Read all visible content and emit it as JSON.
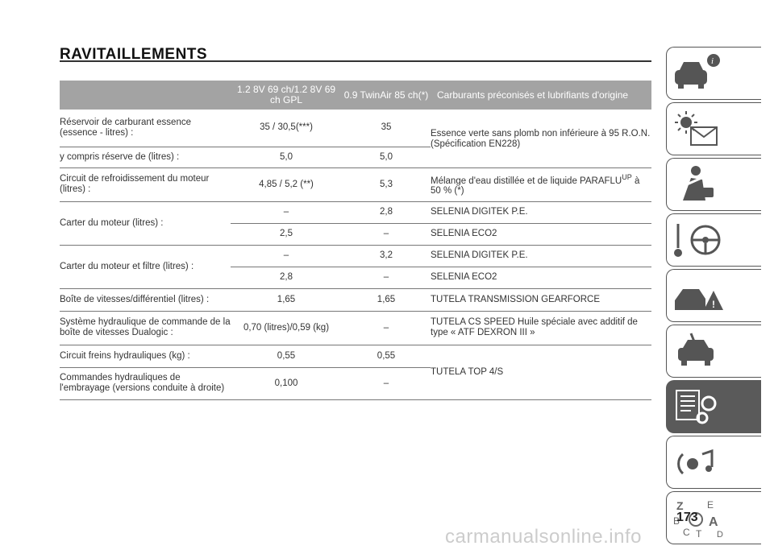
{
  "title": "RAVITAILLEMENTS",
  "headers": [
    "",
    "1.2 8V 69 ch/1.2 8V 69 ch GPL",
    "0.9 TwinAir 85 ch(*)",
    "Carburants préconisés et lubrifiants d'origine"
  ],
  "rows": [
    {
      "desc": "Réservoir de carburant essence (essence - litres) :",
      "v1": "35 / 30,5(***)",
      "v2": "35"
    },
    {
      "desc": "y compris réserve de (litres) :",
      "v1": "5,0",
      "v2": "5,0"
    },
    {
      "desc": "Circuit de refroidissement du moteur (litres) :",
      "v1": "4,85 / 5,2 (**)",
      "v2": "5,3",
      "fuel_pre": "Mélange d'eau distillée et de liquide PARAFLU",
      "fuel_sup": "UP",
      "fuel_post": " à 50 % (*)"
    },
    {
      "desc": "Carter du moteur (litres) :",
      "v1": "–",
      "v2": "2,8",
      "fuel": "SELENIA DIGITEK P.E."
    },
    {
      "v1": "2,5",
      "v2": "–",
      "fuel": "SELENIA ECO2"
    },
    {
      "desc": "Carter du moteur et filtre (litres) :",
      "v1": "–",
      "v2": "3,2",
      "fuel": "SELENIA DIGITEK P.E."
    },
    {
      "v1": "2,8",
      "v2": "–",
      "fuel": "SELENIA ECO2"
    },
    {
      "desc": "Boîte de vitesses/différentiel (litres) :",
      "v1": "1,65",
      "v2": "1,65",
      "fuel": "TUTELA TRANSMISSION GEARFORCE"
    },
    {
      "desc": "Système hydraulique de commande de la boîte de vitesses Dualogic :",
      "v1": "0,70 (litres)/0,59 (kg)",
      "v2": "–",
      "fuel": "TUTELA CS SPEED Huile spéciale avec additif de type « ATF DEXRON III »"
    },
    {
      "desc": "Circuit freins hydrauliques (kg) :",
      "v1": "0,55",
      "v2": "0,55"
    },
    {
      "desc": "Commandes hydrauliques de l'embrayage (versions conduite à droite)",
      "v1": "0,100",
      "v2": "–"
    }
  ],
  "merged_fuel": {
    "essence": "Essence verte sans plomb non inférieure à 95 R.O.N. (Spécification EN228)",
    "tutela": "TUTELA TOP 4/S"
  },
  "sidebar_icons": [
    "car-info-icon",
    "warning-lights-icon",
    "safety-icon",
    "steering-icon",
    "emergency-icon",
    "maintenance-icon",
    "technical-data-icon",
    "multimedia-icon",
    "index-icon"
  ],
  "active_tab": "technical-data-icon",
  "page_number": "173",
  "watermark": "carmanualsonline.info"
}
